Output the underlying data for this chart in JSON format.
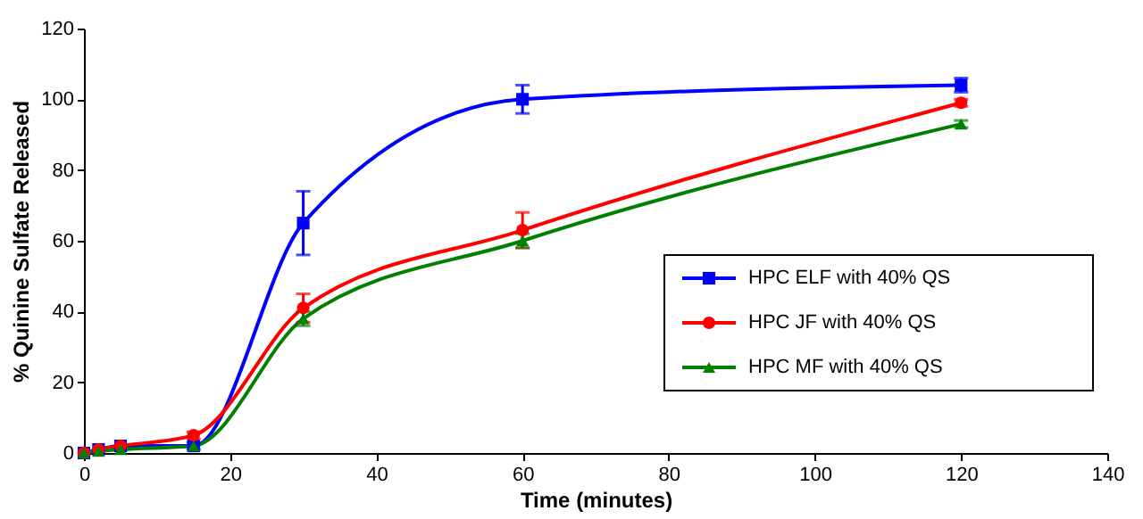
{
  "chart_data": {
    "type": "line",
    "xlabel": "Time (minutes)",
    "ylabel": "% Quinine Sulfate Released",
    "x": [
      0,
      2,
      5,
      15,
      30,
      60,
      120
    ],
    "series": [
      {
        "name": "HPC ELF with 40% QS",
        "color": "#0000ff",
        "marker": "square",
        "values": [
          0,
          1,
          2,
          2,
          65,
          100,
          104
        ],
        "errors": [
          null,
          null,
          null,
          1,
          9,
          4,
          2
        ]
      },
      {
        "name": "HPC JF with 40% QS",
        "color": "#ff0000",
        "marker": "circle",
        "values": [
          0,
          1,
          2,
          5,
          41,
          63,
          99
        ],
        "errors": [
          null,
          null,
          null,
          1,
          4,
          5,
          1
        ]
      },
      {
        "name": "HPC MF with 40% QS",
        "color": "#008000",
        "marker": "triangle",
        "values": [
          0,
          0.5,
          1,
          2,
          38,
          60,
          93
        ],
        "errors": [
          null,
          null,
          null,
          null,
          2,
          2,
          1
        ]
      }
    ],
    "xlim": [
      0,
      140
    ],
    "xticks": [
      0,
      20,
      40,
      60,
      80,
      100,
      120,
      140
    ],
    "ylim": [
      0,
      120
    ],
    "yticks": [
      0,
      20,
      40,
      60,
      80,
      100,
      120
    ],
    "grid": false,
    "legend": "right",
    "line_style": "solid"
  }
}
